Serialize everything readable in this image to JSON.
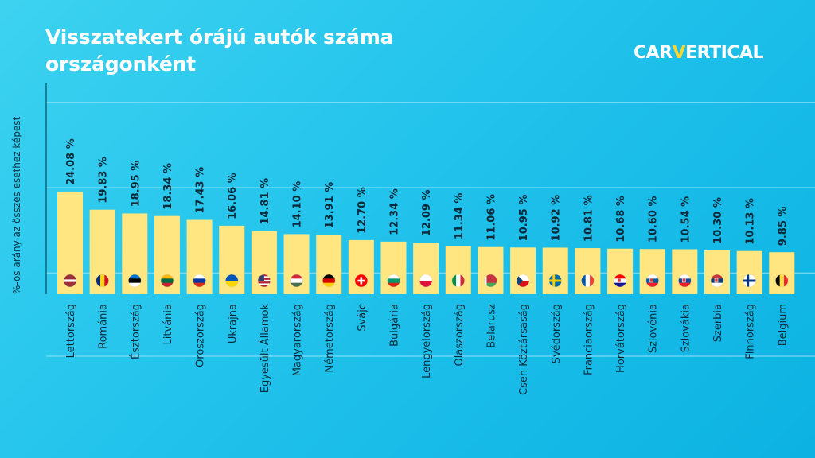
{
  "title_line1": "Visszatekert órájú autók száma",
  "title_line2": "országonként",
  "logo": {
    "part1": "CAR",
    "part2": "V",
    "part3": "ERTICAL"
  },
  "chart_data": {
    "type": "bar",
    "title": "Visszatekert órájú autók száma országonként",
    "ylabel": "%-os arány az összes esethez képest",
    "xlabel": "",
    "ylim": [
      0,
      30
    ],
    "grid": true,
    "value_suffix": " %",
    "categories": [
      "Lettország",
      "Románia",
      "Észtország",
      "Litvánia",
      "Oroszország",
      "Ukrajna",
      "Egyesült Államok",
      "Magyarország",
      "Németország",
      "Svájc",
      "Bulgária",
      "Lengyelország",
      "Olaszország",
      "Belarusz",
      "Cseh Köztársaság",
      "Svédország",
      "Franciaország",
      "Horvátország",
      "Szlovénia",
      "Szlovákia",
      "Szerbia",
      "Finnország",
      "Belgium"
    ],
    "values": [
      24.08,
      19.83,
      18.95,
      18.34,
      17.43,
      16.06,
      14.81,
      14.1,
      13.91,
      12.7,
      12.34,
      12.09,
      11.34,
      11.06,
      10.95,
      10.92,
      10.81,
      10.68,
      10.6,
      10.54,
      10.3,
      10.13,
      9.85
    ],
    "labels": [
      "24.08 %",
      "19.83 %",
      "18.95 %",
      "18.34 %",
      "17.43 %",
      "16.06 %",
      "14.81 %",
      "14.10 %",
      "13.91 %",
      "12.70 %",
      "12.34 %",
      "12.09 %",
      "11.34 %",
      "11.06 %",
      "10.95 %",
      "10.92 %",
      "10.81 %",
      "10.68 %",
      "10.60 %",
      "10.54 %",
      "10.30 %",
      "10.13 %",
      "9.85 %"
    ],
    "flags": [
      "latvia-flag-icon",
      "romania-flag-icon",
      "estonia-flag-icon",
      "lithuania-flag-icon",
      "russia-flag-icon",
      "ukraine-flag-icon",
      "usa-flag-icon",
      "hungary-flag-icon",
      "germany-flag-icon",
      "switzerland-flag-icon",
      "bulgaria-flag-icon",
      "poland-flag-icon",
      "italy-flag-icon",
      "belarus-flag-icon",
      "czech-flag-icon",
      "sweden-flag-icon",
      "france-flag-icon",
      "croatia-flag-icon",
      "slovenia-flag-icon",
      "slovakia-flag-icon",
      "serbia-flag-icon",
      "finland-flag-icon",
      "belgium-flag-icon"
    ]
  },
  "colors": {
    "bar": "#ffe680",
    "text": "#0a2a3a",
    "grid": "#8fe2f5",
    "accent": "#ffd530"
  }
}
